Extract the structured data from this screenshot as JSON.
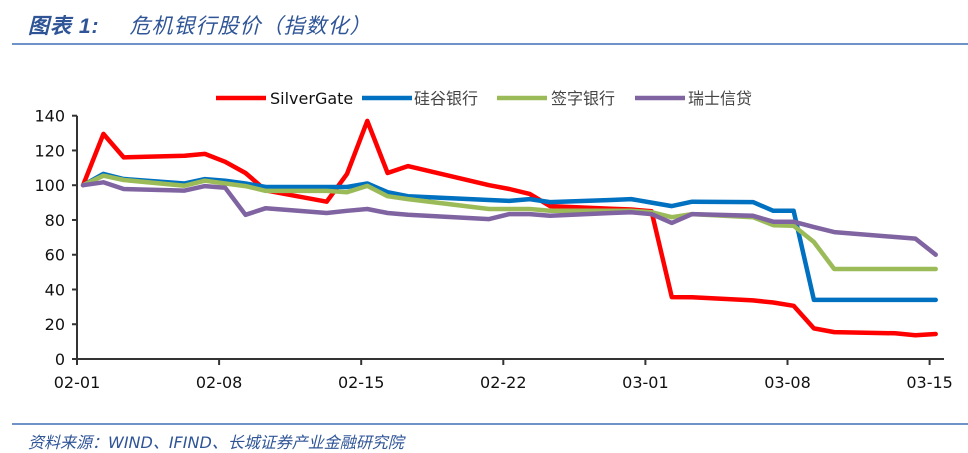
{
  "header": {
    "figure_label": "图表 1:",
    "title": "危机银行股价（指数化）"
  },
  "footer": {
    "source": "资料来源：WIND、IFIND、长城证券产业金融研究院"
  },
  "chart_data": {
    "type": "line",
    "title": "危机银行股价（指数化）",
    "xlabel": "",
    "ylabel": "",
    "ylim": [
      0,
      140
    ],
    "yticks": [
      0,
      20,
      40,
      60,
      80,
      100,
      120,
      140
    ],
    "xticks": [
      {
        "label": "02-01",
        "day": 0
      },
      {
        "label": "02-08",
        "day": 7
      },
      {
        "label": "02-15",
        "day": 14
      },
      {
        "label": "02-22",
        "day": 21
      },
      {
        "label": "03-01",
        "day": 28
      },
      {
        "label": "03-08",
        "day": 35
      },
      {
        "label": "03-15",
        "day": 42
      }
    ],
    "legend_position": "top",
    "x_days": [
      0,
      1,
      2,
      5,
      6,
      7,
      8,
      9,
      12,
      13,
      14,
      15,
      16,
      20,
      21,
      22,
      23,
      26,
      27,
      28,
      29,
      30,
      33,
      34,
      35,
      36,
      37,
      40,
      41,
      42
    ],
    "series": [
      {
        "name": "SilverGate",
        "color": "#ff0000",
        "values": [
          100,
          129.5,
          116,
          117,
          118,
          113.5,
          107,
          97,
          90.5,
          106.5,
          137,
          107,
          111,
          100,
          97.8,
          95,
          88,
          86.5,
          86,
          85,
          35.6,
          35.5,
          33.7,
          32.5,
          30.6,
          17.6,
          15.5,
          14.8,
          13.7,
          14.4
        ]
      },
      {
        "name": "硅谷银行",
        "color": "#0070c0",
        "values": [
          100,
          106.5,
          103.6,
          101,
          103.5,
          102.6,
          101,
          99,
          99,
          99,
          101,
          96,
          93.7,
          91.5,
          91,
          92,
          90.3,
          91.5,
          92,
          90,
          88,
          90.5,
          90.3,
          85.3,
          85.3,
          34,
          34,
          34,
          34,
          34
        ]
      },
      {
        "name": "签字银行",
        "color": "#9bbb59",
        "values": [
          100,
          105.5,
          103,
          99.7,
          102.6,
          101,
          99.5,
          96.7,
          96.7,
          96,
          99.6,
          93.7,
          92,
          86.3,
          86.3,
          86.3,
          85.3,
          85.3,
          85.3,
          84.5,
          81.6,
          83.4,
          81.6,
          77,
          76.7,
          67.3,
          51.8,
          51.8,
          51.8,
          51.8
        ]
      },
      {
        "name": "瑞士信贷",
        "color": "#8064a2",
        "values": [
          100,
          101.7,
          97.8,
          96.9,
          99.5,
          98.5,
          83,
          86.8,
          84,
          85.3,
          86.3,
          84,
          83,
          80.5,
          83.4,
          83.4,
          82.4,
          84,
          84.4,
          83.4,
          78.3,
          83.4,
          82.4,
          79,
          79,
          75.9,
          73,
          70.2,
          69.3,
          60
        ]
      }
    ]
  }
}
